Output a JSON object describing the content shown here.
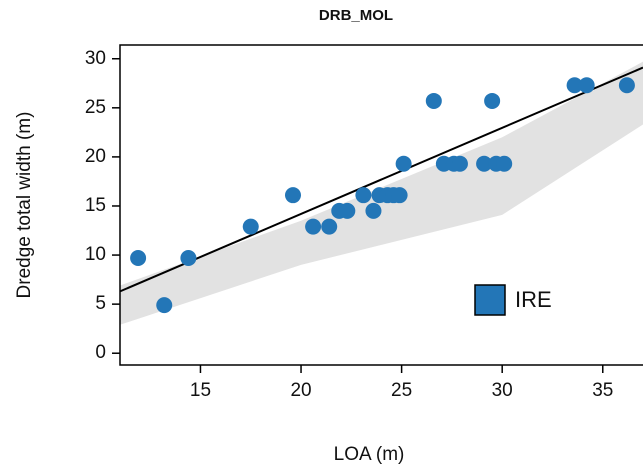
{
  "chart_data": {
    "type": "scatter",
    "title": "DRB_MOL",
    "x_label": "LOA (m)",
    "y_label": "Dredge total width (m)",
    "series": [
      {
        "name": "IRE",
        "color": "#2376b7",
        "x": [
          11.9,
          13.2,
          14.4,
          17.5,
          19.6,
          20.6,
          21.4,
          21.9,
          22.3,
          23.1,
          23.6,
          23.9,
          24.3,
          24.6,
          24.9,
          25.1,
          26.6,
          27.1,
          27.6,
          27.9,
          29.1,
          29.5,
          29.7,
          30.1,
          33.6,
          34.2,
          36.2
        ],
        "values": [
          9.7,
          4.9,
          9.7,
          12.9,
          16.1,
          12.9,
          12.9,
          14.5,
          14.5,
          16.1,
          14.5,
          16.1,
          16.1,
          16.1,
          16.1,
          19.3,
          25.7,
          19.3,
          19.3,
          19.3,
          19.3,
          25.7,
          19.3,
          19.3,
          27.3,
          27.3,
          27.3
        ]
      }
    ],
    "fit_line": {
      "color": "#000000",
      "x": [
        11,
        37
      ],
      "values": [
        6.3,
        29.1
      ]
    },
    "band": {
      "color": "#e2e2e2",
      "x": [
        11,
        20,
        30,
        37
      ],
      "lower": [
        2.9,
        9.0,
        14.1,
        23.3
      ],
      "upper": [
        6.9,
        13.5,
        22,
        29.7
      ]
    },
    "xlim": [
      11,
      37
    ],
    "ylim": [
      -1.2,
      31.4
    ],
    "xticks": [
      15,
      20,
      25,
      30,
      35
    ],
    "yticks": [
      0,
      5,
      10,
      15,
      20,
      25,
      30
    ],
    "legend": "bottom-right"
  }
}
